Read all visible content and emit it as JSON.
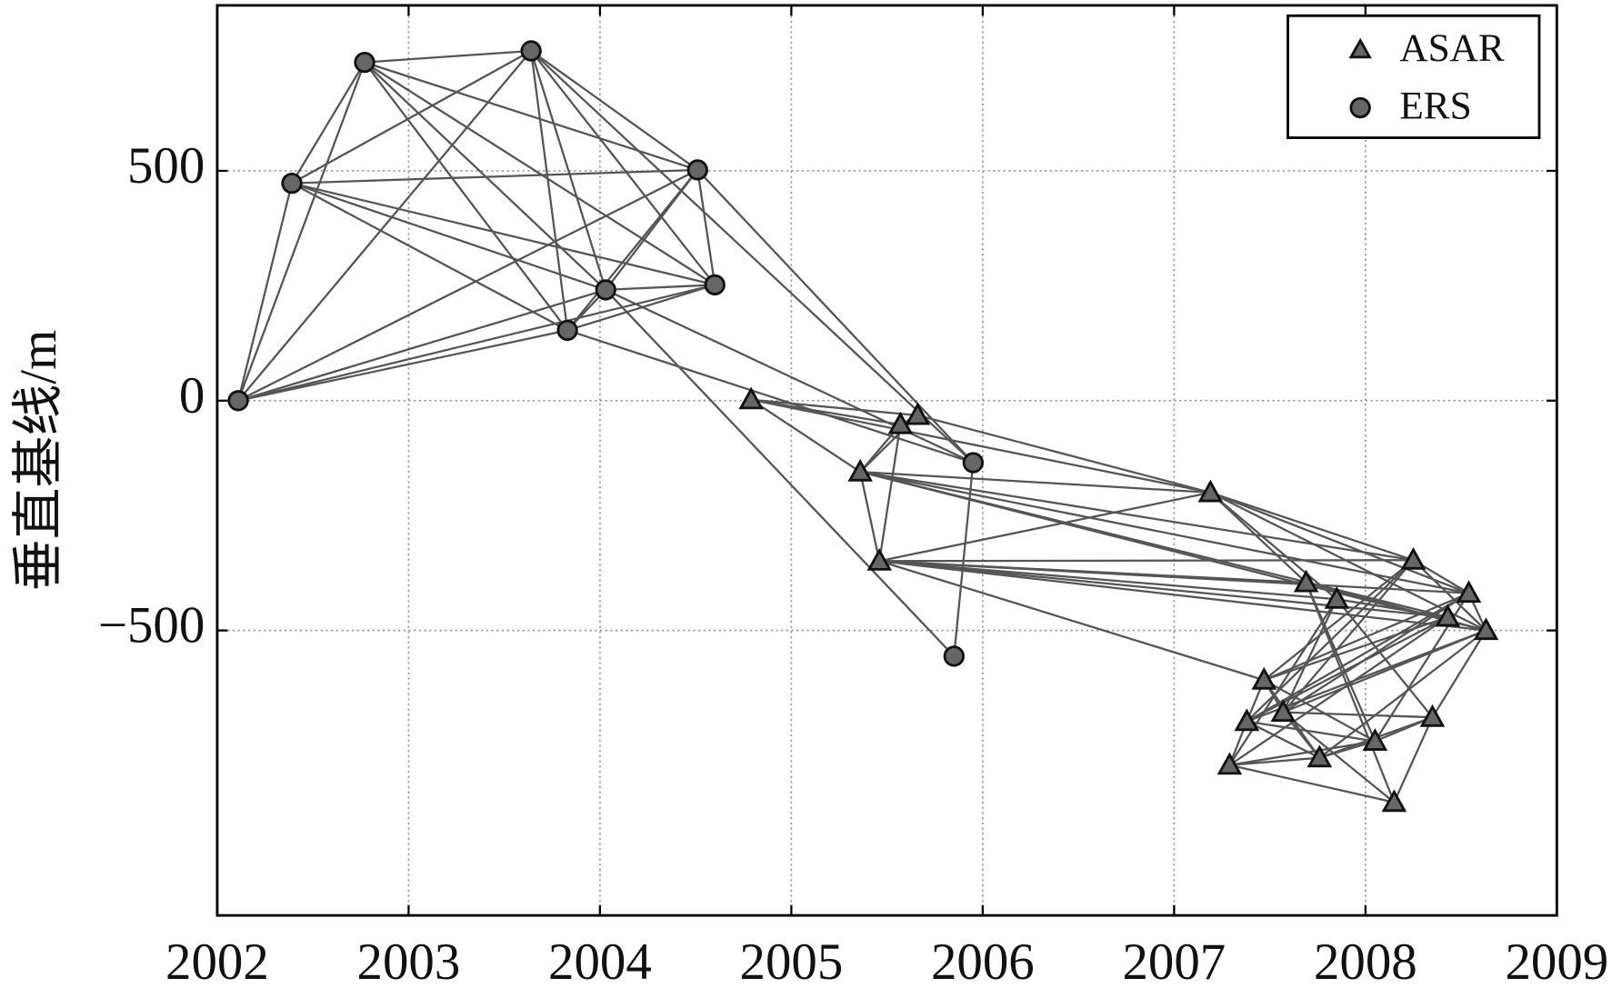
{
  "chart_data": {
    "type": "scatter",
    "y_label": "垂直基线/m",
    "xlim": [
      2002,
      2009
    ],
    "ylim": [
      -1120,
      860
    ],
    "xticks": [
      2002,
      2003,
      2004,
      2005,
      2006,
      2007,
      2008,
      2009
    ],
    "yticks": [
      {
        "value": -500,
        "label": "−500"
      },
      0,
      500
    ],
    "grid": true,
    "legend": "upper right",
    "series": [
      {
        "name": "ASAR",
        "marker": "triangle",
        "color": "#666666",
        "x": [
          2004.79,
          2005.66,
          2005.57,
          2005.36,
          2005.46,
          2007.19,
          2008.25,
          2008.54,
          2008.63,
          2008.43,
          2007.69,
          2007.85,
          2007.47,
          2007.57,
          2007.38,
          2008.35,
          2008.05,
          2007.76,
          2007.29,
          2008.15
        ],
        "y": [
          2,
          -32,
          -52,
          -155,
          -349,
          -200,
          -347,
          -419,
          -500,
          -471,
          -396,
          -432,
          -608,
          -678,
          -698,
          -689,
          -741,
          -777,
          -793,
          -874
        ],
        "links": [
          [
            0,
            1
          ],
          [
            0,
            2
          ],
          [
            0,
            3
          ],
          [
            0,
            5
          ],
          [
            1,
            2
          ],
          [
            1,
            3
          ],
          [
            2,
            3
          ],
          [
            2,
            4
          ],
          [
            1,
            5
          ],
          [
            3,
            4
          ],
          [
            3,
            5
          ],
          [
            3,
            6
          ],
          [
            3,
            7
          ],
          [
            3,
            8
          ],
          [
            3,
            9
          ],
          [
            4,
            5
          ],
          [
            4,
            6
          ],
          [
            4,
            7
          ],
          [
            4,
            8
          ],
          [
            4,
            9
          ],
          [
            4,
            10
          ],
          [
            4,
            11
          ],
          [
            4,
            12
          ],
          [
            5,
            6
          ],
          [
            5,
            7
          ],
          [
            5,
            8
          ],
          [
            5,
            10
          ],
          [
            5,
            11
          ],
          [
            6,
            7
          ],
          [
            6,
            8
          ],
          [
            6,
            12
          ],
          [
            6,
            13
          ],
          [
            6,
            14
          ],
          [
            7,
            8
          ],
          [
            7,
            12
          ],
          [
            7,
            13
          ],
          [
            7,
            14
          ],
          [
            7,
            16
          ],
          [
            8,
            13
          ],
          [
            8,
            14
          ],
          [
            8,
            15
          ],
          [
            8,
            17
          ],
          [
            9,
            12
          ],
          [
            9,
            14
          ],
          [
            9,
            18
          ],
          [
            10,
            16
          ],
          [
            10,
            19
          ],
          [
            11,
            13
          ],
          [
            11,
            15
          ],
          [
            11,
            18
          ],
          [
            12,
            13
          ],
          [
            12,
            14
          ],
          [
            12,
            16
          ],
          [
            12,
            17
          ],
          [
            13,
            15
          ],
          [
            13,
            17
          ],
          [
            13,
            19
          ],
          [
            14,
            16
          ],
          [
            14,
            17
          ],
          [
            14,
            18
          ],
          [
            15,
            16
          ],
          [
            15,
            17
          ],
          [
            16,
            17
          ],
          [
            16,
            18
          ],
          [
            17,
            18
          ],
          [
            18,
            19
          ],
          [
            19,
            15
          ],
          [
            10,
            8
          ],
          [
            11,
            9
          ]
        ]
      },
      {
        "name": "ERS",
        "marker": "circle",
        "color": "#666666",
        "x": [
          2002.11,
          2002.39,
          2002.77,
          2003.64,
          2004.51,
          2004.6,
          2004.03,
          2003.83,
          2005.95,
          2005.85
        ],
        "y": [
          0,
          473,
          736,
          761,
          502,
          252,
          241,
          153,
          -135,
          -556
        ],
        "links": [
          [
            0,
            1
          ],
          [
            0,
            2
          ],
          [
            0,
            3
          ],
          [
            0,
            4
          ],
          [
            0,
            5
          ],
          [
            0,
            6
          ],
          [
            0,
            7
          ],
          [
            1,
            2
          ],
          [
            1,
            3
          ],
          [
            1,
            4
          ],
          [
            1,
            5
          ],
          [
            1,
            6
          ],
          [
            1,
            7
          ],
          [
            2,
            3
          ],
          [
            2,
            4
          ],
          [
            2,
            5
          ],
          [
            2,
            6
          ],
          [
            2,
            7
          ],
          [
            3,
            4
          ],
          [
            3,
            5
          ],
          [
            3,
            6
          ],
          [
            3,
            7
          ],
          [
            4,
            5
          ],
          [
            4,
            6
          ],
          [
            4,
            7
          ],
          [
            5,
            6
          ],
          [
            5,
            7
          ],
          [
            6,
            7
          ],
          [
            3,
            8
          ],
          [
            4,
            8
          ],
          [
            6,
            8
          ],
          [
            6,
            9
          ],
          [
            7,
            8
          ],
          [
            9,
            8
          ]
        ]
      }
    ]
  }
}
